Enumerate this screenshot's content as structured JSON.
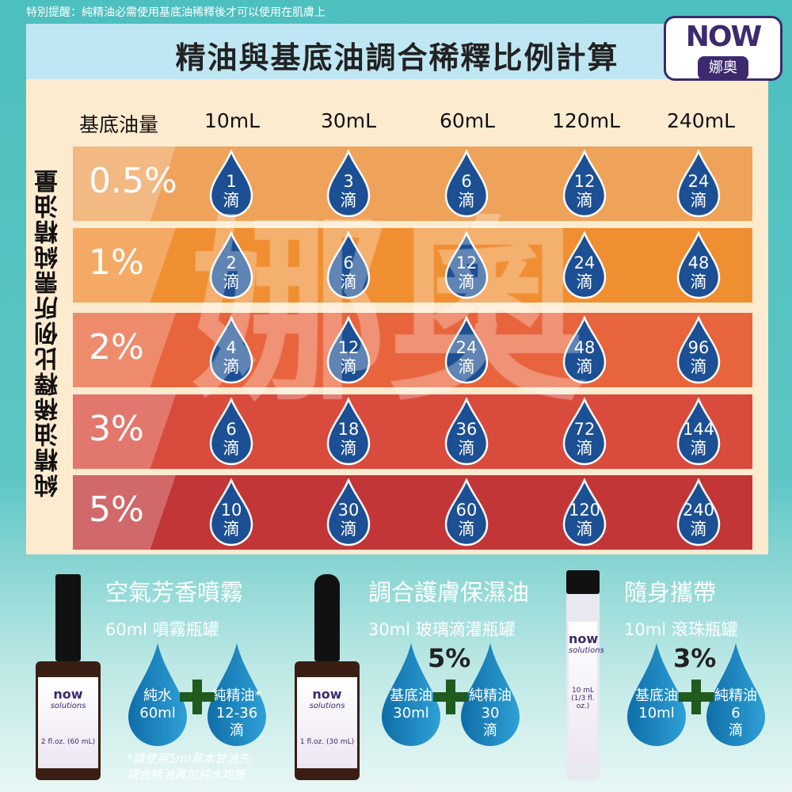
{
  "notice": "特別提醒：純精油必需使用基底油稀釋後才可以使用在肌膚上",
  "title": "精油與基底油調合稀釋比例計算",
  "logo": {
    "brand": "NOW",
    "sub": "娜奧"
  },
  "watermark": "娜奧",
  "side_label": "純精油稀釋比例所需純精油量",
  "header": {
    "label": "基底油量",
    "columns": [
      "10mL",
      "30mL",
      "60mL",
      "120mL",
      "240mL"
    ]
  },
  "unit": "滴",
  "rows": [
    {
      "pct": "0.5%",
      "color": "#eea25a",
      "drops": [
        "1",
        "3",
        "6",
        "12",
        "24"
      ]
    },
    {
      "pct": "1%",
      "color": "#f08e32",
      "drops": [
        "2",
        "6",
        "12",
        "24",
        "48"
      ]
    },
    {
      "pct": "2%",
      "color": "#e8643c",
      "drops": [
        "4",
        "12",
        "24",
        "48",
        "96"
      ]
    },
    {
      "pct": "3%",
      "color": "#d94b3c",
      "drops": [
        "6",
        "18",
        "36",
        "72",
        "144"
      ]
    },
    {
      "pct": "5%",
      "color": "#c23638",
      "drops": [
        "10",
        "30",
        "60",
        "120",
        "240"
      ]
    }
  ],
  "drop_color": "#1c4f93",
  "products": [
    {
      "title": "空氣芳香噴霧",
      "sub": "60ml 噴霧瓶罐",
      "a": [
        "純水",
        "60ml"
      ],
      "b": [
        "純精油*",
        "12-36",
        "滴"
      ],
      "pct": "",
      "bottle_label": "2 fl.oz. (60 mL)"
    },
    {
      "title": "調合護膚保濕油",
      "sub": "30ml 玻璃滴灌瓶罐",
      "a": [
        "基底油",
        "30ml"
      ],
      "b": [
        "純精油",
        "30",
        "滴"
      ],
      "pct": "5%",
      "bottle_label": "1 fl.oz. (30 mL)"
    },
    {
      "title": "隨身攜帶",
      "sub": "10ml 滾珠瓶罐",
      "a": [
        "基底油",
        "10ml"
      ],
      "b": [
        "純精油",
        "6",
        "滴"
      ],
      "pct": "3%",
      "bottle_label": "10 mL (1/3 fl. oz.)"
    }
  ],
  "bottle_brand": "now",
  "bottle_line": "solutions",
  "footnote": [
    "*請使用5ml草本甘油先",
    "調合精油再加純水均搖"
  ]
}
